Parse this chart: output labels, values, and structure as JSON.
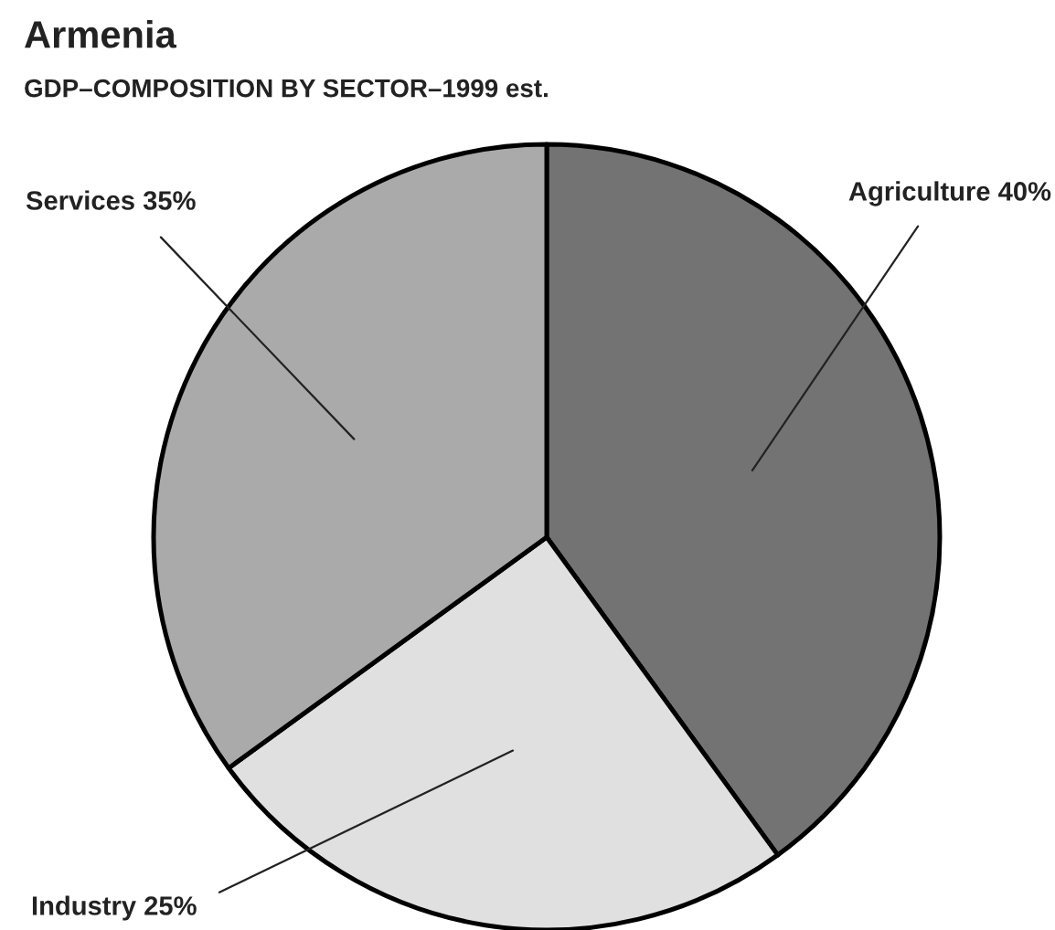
{
  "chart_data": {
    "type": "pie",
    "title": "Armenia",
    "subtitle": "GDP–COMPOSITION BY SECTOR–1999 est.",
    "categories": [
      "Agriculture",
      "Industry",
      "Services"
    ],
    "values": [
      40,
      25,
      35
    ],
    "colors": [
      "#737373",
      "#e0e0e0",
      "#aaaaaa"
    ],
    "value_labels": [
      "40%",
      "25%",
      "35%"
    ]
  }
}
